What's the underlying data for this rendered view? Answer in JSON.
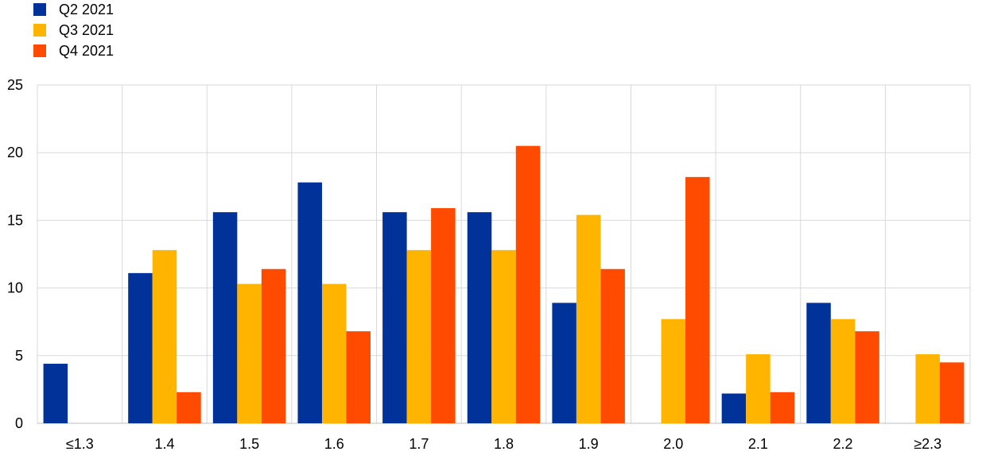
{
  "chart_data": {
    "type": "bar",
    "categories": [
      "≤1.3",
      "1.4",
      "1.5",
      "1.6",
      "1.7",
      "1.8",
      "1.9",
      "2.0",
      "2.1",
      "2.2",
      "≥2.3"
    ],
    "series": [
      {
        "name": "Q2 2021",
        "color": "#003299",
        "values": [
          4.4,
          11.1,
          15.6,
          17.8,
          15.6,
          15.6,
          8.9,
          0,
          2.2,
          8.9,
          0
        ]
      },
      {
        "name": "Q3 2021",
        "color": "#FFB400",
        "values": [
          0,
          12.8,
          10.3,
          10.3,
          12.8,
          12.8,
          15.4,
          7.7,
          5.1,
          7.7,
          5.1
        ]
      },
      {
        "name": "Q4 2021",
        "color": "#FF4B00",
        "values": [
          0,
          2.3,
          11.4,
          6.8,
          15.9,
          20.5,
          11.4,
          18.2,
          2.3,
          6.8,
          4.5
        ]
      }
    ],
    "ylim": [
      0,
      25
    ],
    "yticks": [
      0,
      5,
      10,
      15,
      20,
      25
    ],
    "grid": true,
    "legend_position": "top-left"
  }
}
